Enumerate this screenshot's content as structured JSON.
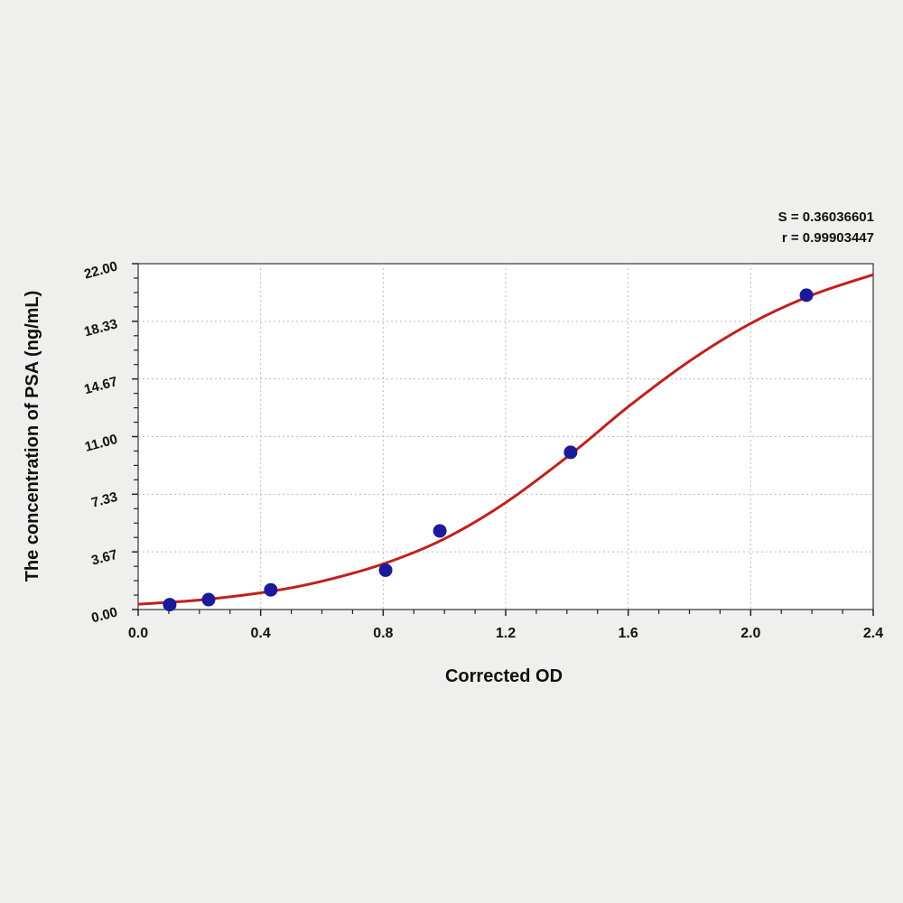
{
  "chart_data": {
    "type": "scatter",
    "title": "",
    "xlabel": "Corrected OD",
    "ylabel": "The concentration of PSA (ng/mL)",
    "xlim": [
      0,
      2.4
    ],
    "ylim": [
      0,
      22
    ],
    "x_ticks": [
      "0.0",
      "0.4",
      "0.8",
      "1.2",
      "1.6",
      "2.0",
      "2.4"
    ],
    "y_ticks": [
      "0.00",
      "3.67",
      "7.33",
      "11.00",
      "14.67",
      "18.33",
      "22.00"
    ],
    "grid": true,
    "annotations": [
      "S = 0.36036601",
      "r = 0.99903447"
    ],
    "series": [
      {
        "type": "scatter",
        "color": "#1a1a9a",
        "x": [
          0.103,
          0.23,
          0.433,
          0.808,
          0.985,
          1.412,
          2.182
        ],
        "y": [
          0.31,
          0.63,
          1.25,
          2.5,
          5,
          10,
          20
        ]
      },
      {
        "type": "line",
        "color": "#c0201e",
        "x": [
          0,
          0.2,
          0.43,
          0.6,
          0.8,
          1.0,
          1.2,
          1.42,
          1.6,
          1.8,
          2.0,
          2.2,
          2.4
        ],
        "y": [
          0.34,
          0.6,
          1.15,
          1.8,
          2.9,
          4.5,
          6.8,
          10.0,
          12.9,
          15.8,
          18.2,
          20.0,
          21.3
        ]
      }
    ]
  }
}
